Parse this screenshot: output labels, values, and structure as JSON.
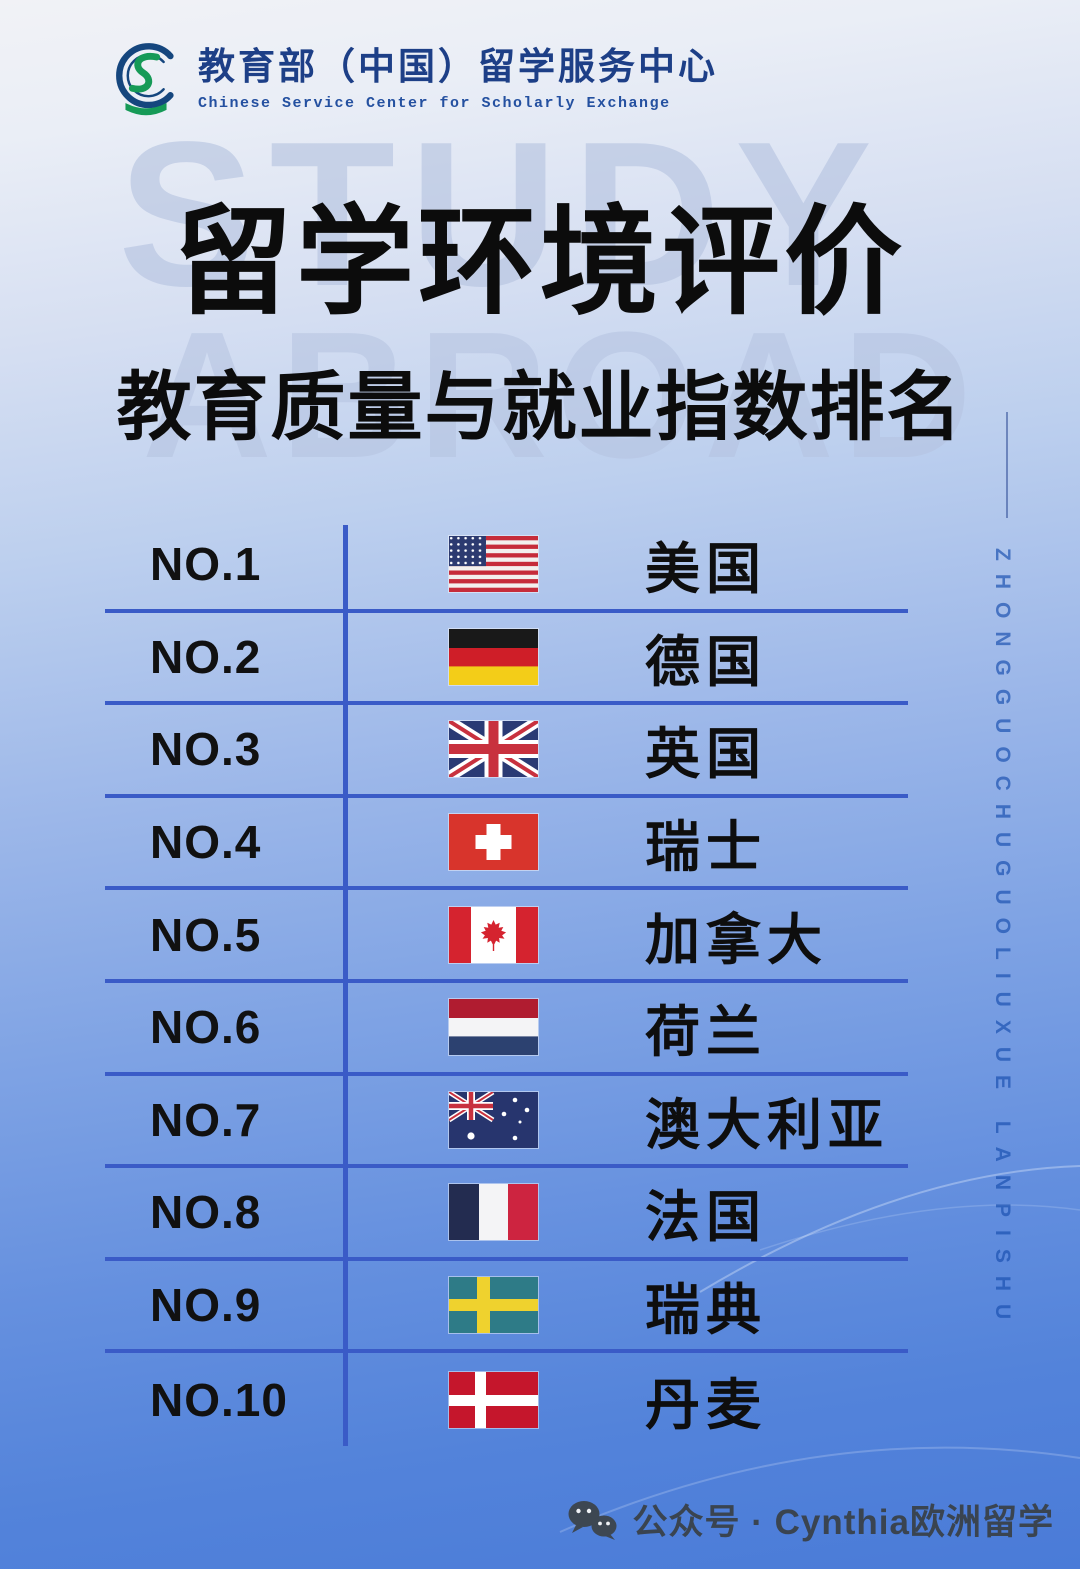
{
  "header": {
    "org_cn": "教育部（中国）留学服务中心",
    "org_en": "Chinese Service Center for Scholarly Exchange",
    "logo_icon": "cscse-ring-s-book-logo"
  },
  "watermarks": {
    "top": "STUDY",
    "bottom": "ABROAD"
  },
  "title": "留学环境评价",
  "subtitle": "教育质量与就业指数排名",
  "side_text": "ZHONGGUOCHUGUOLIUXUE LANPISHU",
  "ranking": [
    {
      "rank": "NO.1",
      "country": "美国",
      "flag": "usa"
    },
    {
      "rank": "NO.2",
      "country": "德国",
      "flag": "germany"
    },
    {
      "rank": "NO.3",
      "country": "英国",
      "flag": "uk"
    },
    {
      "rank": "NO.4",
      "country": "瑞士",
      "flag": "switzerland"
    },
    {
      "rank": "NO.5",
      "country": "加拿大",
      "flag": "canada"
    },
    {
      "rank": "NO.6",
      "country": "荷兰",
      "flag": "netherlands"
    },
    {
      "rank": "NO.7",
      "country": "澳大利亚",
      "flag": "australia"
    },
    {
      "rank": "NO.8",
      "country": "法国",
      "flag": "france"
    },
    {
      "rank": "NO.9",
      "country": "瑞典",
      "flag": "sweden"
    },
    {
      "rank": "NO.10",
      "country": "丹麦",
      "flag": "denmark"
    }
  ],
  "footer": {
    "icon": "wechat-icon",
    "account": "公众号 · Cynthia欧洲留学"
  },
  "colors": {
    "divider": "#3a5bc7",
    "title_text": "#0c0c0c",
    "org_blue": "#1d3f87",
    "logo_green": "#169a57",
    "watermark": "#b5c3e0",
    "bg_top": "#f1f2f6",
    "bg_bottom": "#4a7bd8",
    "footer_text": "#3a4450"
  }
}
